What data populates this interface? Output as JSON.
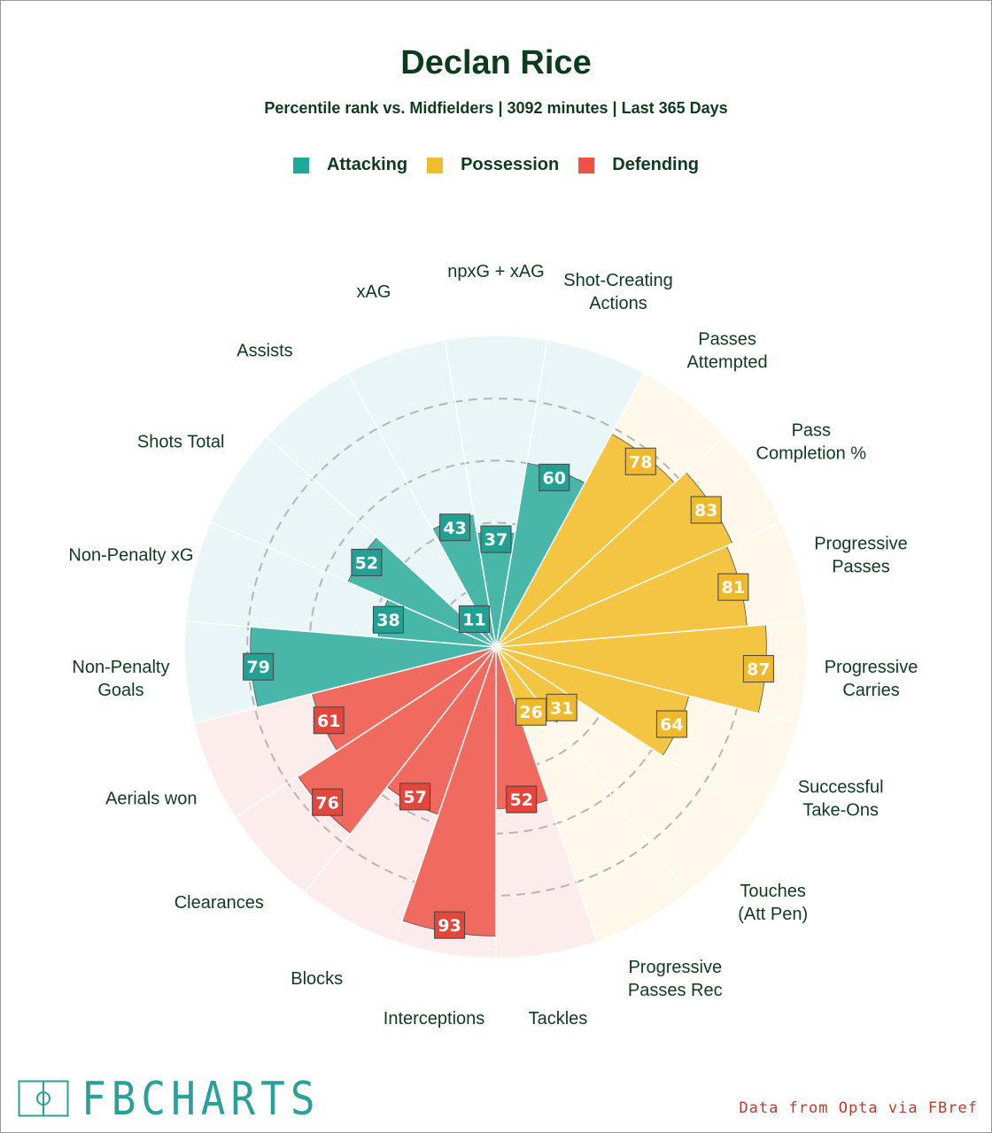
{
  "header": {
    "title": "Declan Rice",
    "subtitle": "Percentile rank vs. Midfielders | 3092 minutes | Last 365 Days"
  },
  "legend": [
    {
      "label": "Attacking",
      "color": "#1fa99b"
    },
    {
      "label": "Possession",
      "color": "#f2bd2c"
    },
    {
      "label": "Defending",
      "color": "#ee5246"
    }
  ],
  "footer": {
    "logo_text": "FBCHARTS",
    "source": "Data from Opta via FBref"
  },
  "chart_data": {
    "type": "radial-bar",
    "range": [
      0,
      100
    ],
    "gridlines": [
      20,
      40,
      60,
      80
    ],
    "categories": [
      "npxG + xAG",
      "Shot-Creating Actions",
      "Passes Attempted",
      "Pass Completion %",
      "Progressive Passes",
      "Progressive Carries",
      "Successful Take-Ons",
      "Touches (Att Pen)",
      "Progressive Passes Rec",
      "Tackles",
      "Interceptions",
      "Blocks",
      "Clearances",
      "Aerials won",
      "Non-Penalty Goals",
      "Non-Penalty xG",
      "Shots Total",
      "Assists",
      "xAG"
    ],
    "values": [
      37,
      60,
      78,
      83,
      81,
      87,
      64,
      31,
      26,
      52,
      93,
      57,
      76,
      61,
      79,
      38,
      52,
      11,
      43
    ],
    "groups": [
      "Attacking",
      "Attacking",
      "Possession",
      "Possession",
      "Possession",
      "Possession",
      "Possession",
      "Possession",
      "Possession",
      "Defending",
      "Defending",
      "Defending",
      "Defending",
      "Defending",
      "Attacking",
      "Attacking",
      "Attacking",
      "Attacking",
      "Attacking"
    ],
    "colors": {
      "Attacking": {
        "bar": "#48b7aa",
        "background": "#e9f5f6",
        "label_box": "#23a094"
      },
      "Possession": {
        "bar": "#f3c542",
        "background": "#fdf8ea",
        "label_box": "#f0b92c"
      },
      "Defending": {
        "bar": "#f06a5f",
        "background": "#fdecec",
        "label_box": "#e4463c"
      }
    }
  }
}
